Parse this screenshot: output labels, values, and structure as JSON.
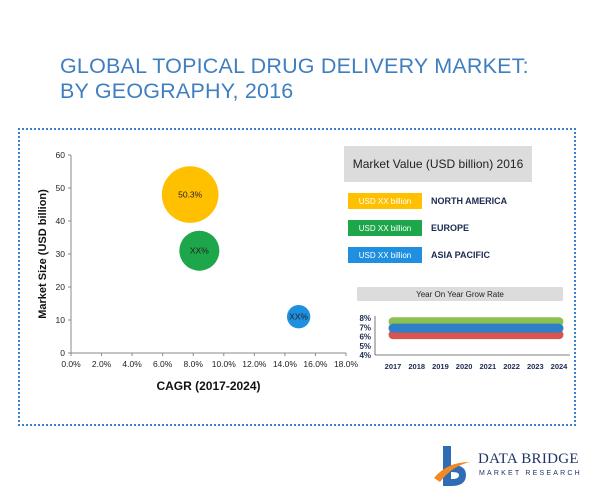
{
  "title_line1": "GLOBAL TOPICAL DRUG DELIVERY MARKET:",
  "title_line2": "BY GEOGRAPHY, 2016",
  "chart_data": [
    {
      "type": "bubble",
      "xlabel": "CAGR (2017-2024)",
      "ylabel": "Market Size (USD billion)",
      "xlim": [
        0,
        18
      ],
      "ylim": [
        0,
        60
      ],
      "xticks": [
        "0.0%",
        "2.0%",
        "4.0%",
        "6.0%",
        "8.0%",
        "10.0%",
        "12.0%",
        "14.0%",
        "16.0%",
        "18.0%"
      ],
      "yticks": [
        "0",
        "10",
        "20",
        "30",
        "40",
        "50",
        "60"
      ],
      "series": [
        {
          "name": "NORTH AMERICA",
          "x": 7.8,
          "y": 48,
          "size": 34,
          "label": "50.3%",
          "color": "#ffc000"
        },
        {
          "name": "EUROPE",
          "x": 8.4,
          "y": 31,
          "size": 24,
          "label": "XX%",
          "color": "#1ea64b"
        },
        {
          "name": "ASIA PACIFIC",
          "x": 14.9,
          "y": 11,
          "size": 14,
          "label": "XX%",
          "color": "#1f8fe0"
        }
      ],
      "legend_title": "Market Value (USD billion) 2016",
      "legend_value_label": "USD XX billion"
    },
    {
      "type": "line",
      "title": "Year On Year Grow Rate",
      "categories": [
        "2017",
        "2018",
        "2019",
        "2020",
        "2021",
        "2022",
        "2023",
        "2024"
      ],
      "yticks": [
        "8%",
        "7%",
        "6%",
        "5%",
        "4%"
      ],
      "ylim": [
        4,
        8
      ],
      "series": [
        {
          "name": "NORTH AMERICA",
          "values": [
            7.6,
            7.6,
            7.6,
            7.6,
            7.6,
            7.6,
            7.6,
            7.6
          ],
          "color": "#8cc152"
        },
        {
          "name": "EUROPE",
          "values": [
            6.2,
            6.2,
            6.2,
            6.2,
            6.2,
            6.2,
            6.2,
            6.2
          ],
          "color": "#d9534f"
        },
        {
          "name": "ASIA PACIFIC",
          "values": [
            6.9,
            6.9,
            6.9,
            6.9,
            6.9,
            6.9,
            6.9,
            6.9
          ],
          "color": "#2f7fc8"
        }
      ]
    }
  ],
  "logo": {
    "line1": "DATA BRIDGE",
    "line2": "MARKET RESEARCH",
    "colors": [
      "#f08a24",
      "#2e6db5"
    ]
  }
}
